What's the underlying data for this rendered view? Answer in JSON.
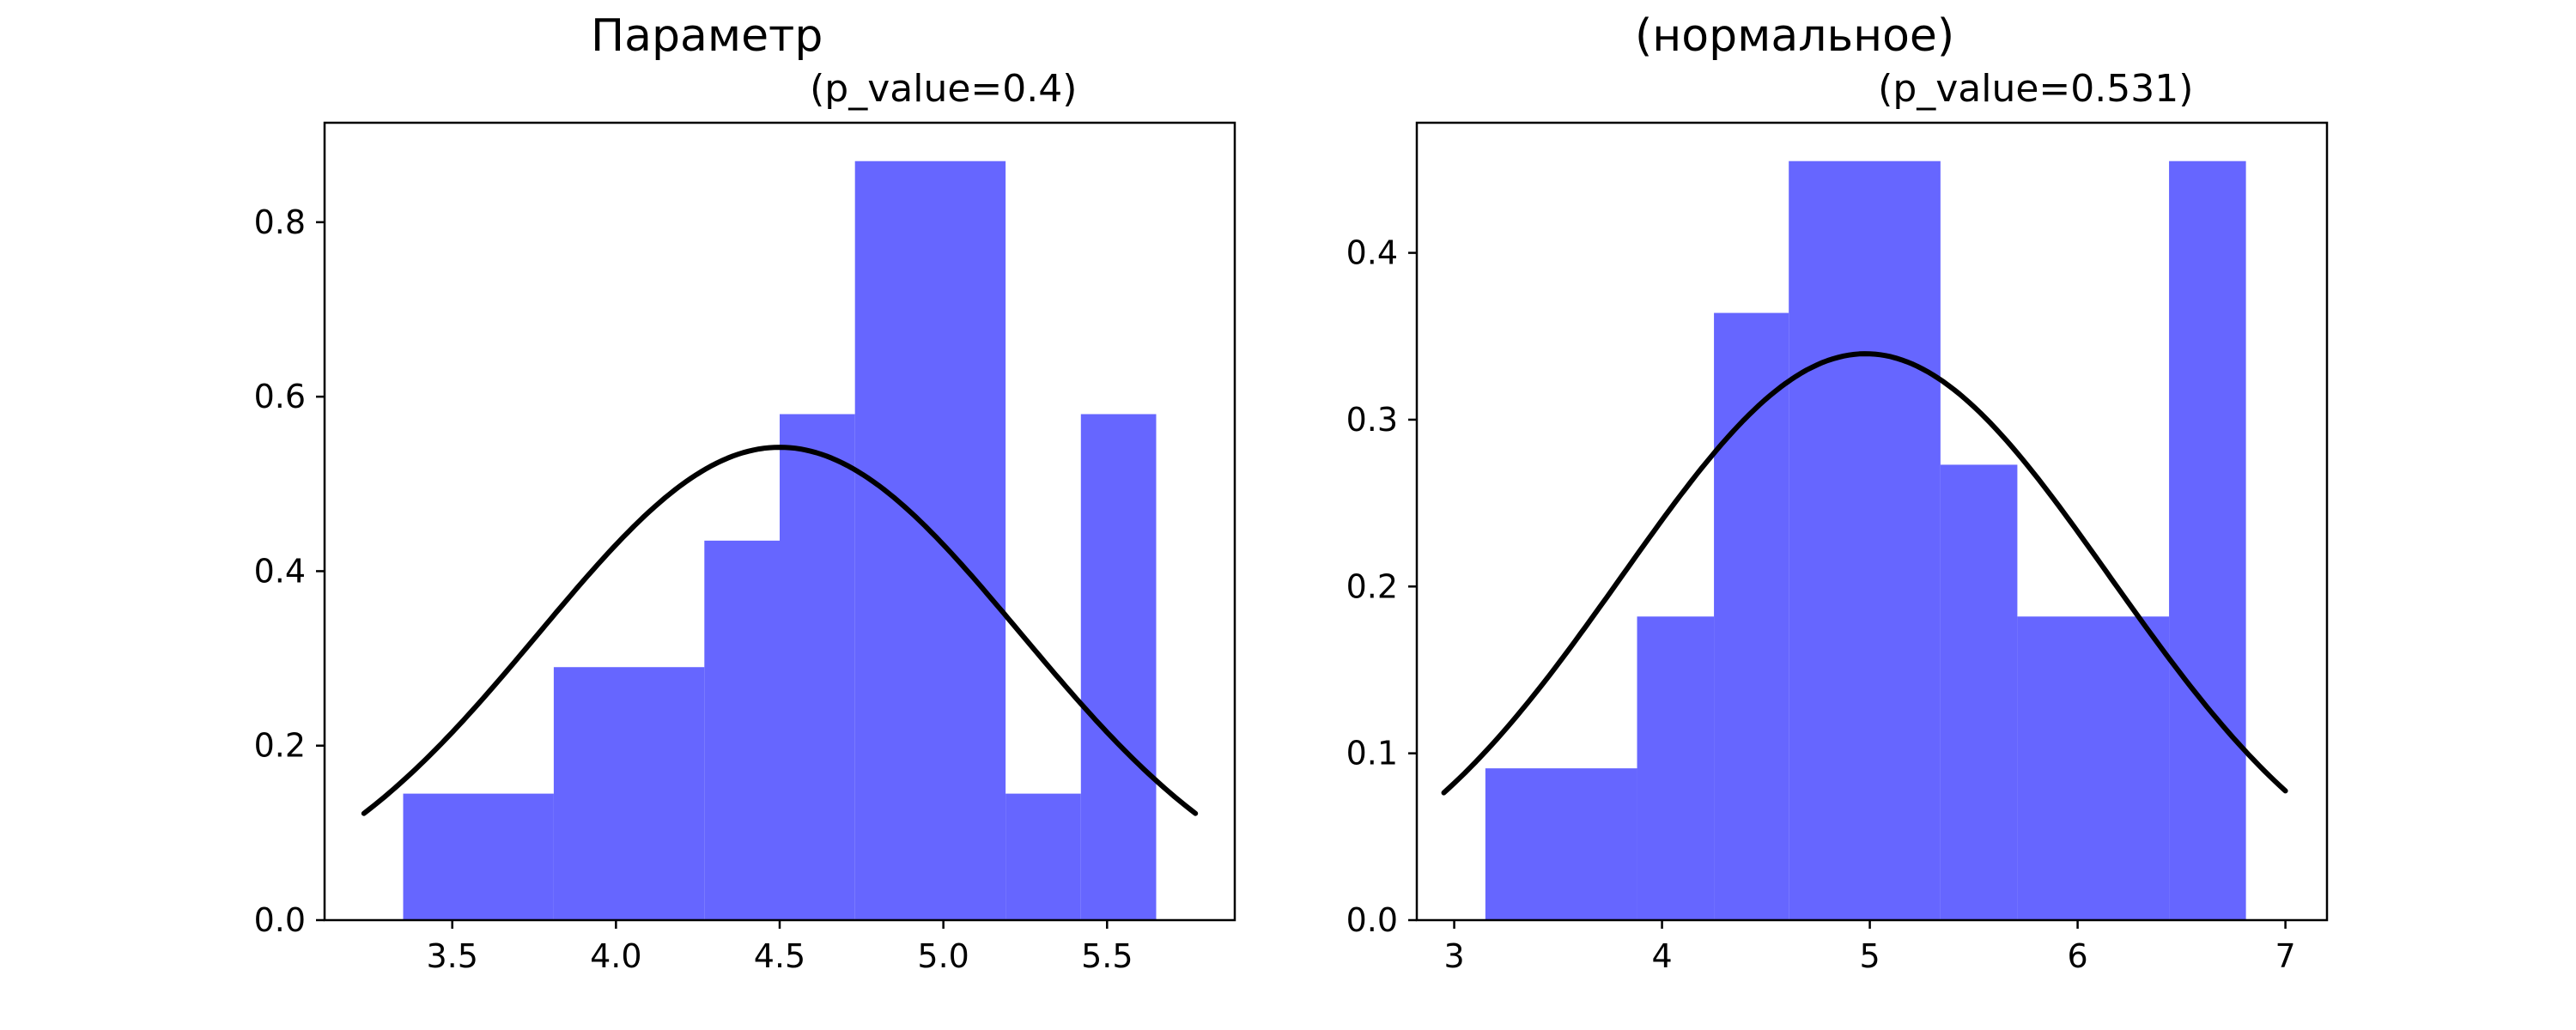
{
  "figure": {
    "suptitle_left": "Параметр",
    "suptitle_right": "(нормальное)"
  },
  "chart_data": [
    {
      "type": "bar",
      "title": "(p_value=0.4)",
      "bar_color": "#6666ff",
      "curve_color": "#000000",
      "bins": [
        {
          "x0": 3.35,
          "x1": 3.81,
          "value": 0.145
        },
        {
          "x0": 3.81,
          "x1": 4.27,
          "value": 0.29
        },
        {
          "x0": 4.27,
          "x1": 4.5,
          "value": 0.435
        },
        {
          "x0": 4.5,
          "x1": 4.73,
          "value": 0.58
        },
        {
          "x0": 4.73,
          "x1": 5.19,
          "value": 0.87
        },
        {
          "x0": 5.19,
          "x1": 5.42,
          "value": 0.145
        },
        {
          "x0": 5.42,
          "x1": 5.65,
          "value": 0.58
        }
      ],
      "normal_curve": {
        "mean": 4.5,
        "sd": 0.736,
        "x_range": [
          3.23,
          5.77
        ]
      },
      "xlim": [
        3.11,
        5.89
      ],
      "ylim": [
        0,
        0.914
      ],
      "xticks": [
        3.5,
        4.0,
        4.5,
        5.0,
        5.5
      ],
      "xtick_labels": [
        "3.5",
        "4.0",
        "4.5",
        "5.0",
        "5.5"
      ],
      "yticks": [
        0.0,
        0.2,
        0.4,
        0.6,
        0.8
      ],
      "ytick_labels": [
        "0.0",
        "0.2",
        "0.4",
        "0.6",
        "0.8"
      ]
    },
    {
      "type": "bar",
      "title": "(p_value=0.531)",
      "bar_color": "#6666ff",
      "curve_color": "#000000",
      "bins": [
        {
          "x0": 3.15,
          "x1": 3.88,
          "value": 0.091
        },
        {
          "x0": 3.88,
          "x1": 4.25,
          "value": 0.182
        },
        {
          "x0": 4.25,
          "x1": 4.61,
          "value": 0.364
        },
        {
          "x0": 4.61,
          "x1": 5.34,
          "value": 0.455
        },
        {
          "x0": 5.34,
          "x1": 5.71,
          "value": 0.273
        },
        {
          "x0": 5.71,
          "x1": 6.44,
          "value": 0.182
        },
        {
          "x0": 6.44,
          "x1": 6.81,
          "value": 0.455
        }
      ],
      "normal_curve": {
        "mean": 4.98,
        "sd": 1.175,
        "x_range": [
          2.95,
          7.0
        ]
      },
      "xlim": [
        2.82,
        7.2
      ],
      "ylim": [
        0,
        0.478
      ],
      "xticks": [
        3,
        4,
        5,
        6,
        7
      ],
      "xtick_labels": [
        "3",
        "4",
        "5",
        "6",
        "7"
      ],
      "yticks": [
        0.0,
        0.1,
        0.2,
        0.3,
        0.4
      ],
      "ytick_labels": [
        "0.0",
        "0.1",
        "0.2",
        "0.3",
        "0.4"
      ]
    }
  ]
}
